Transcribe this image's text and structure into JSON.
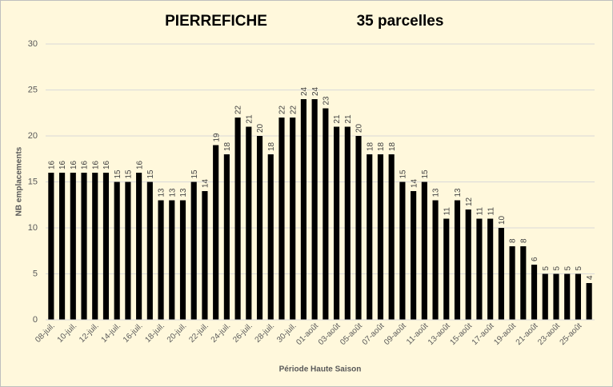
{
  "chart_data": {
    "type": "bar",
    "title": "PIERREFICHE",
    "subtitle": "35 parcelles",
    "y_label": "NB emplacements",
    "x_label": "Période Haute Saison",
    "categories": [
      "08-juil.",
      null,
      "10-juil.",
      null,
      "12-juil.",
      null,
      "14-juil.",
      null,
      "16-juil.",
      null,
      "18-juil.",
      null,
      "20-juil.",
      null,
      "22-juil.",
      null,
      "24-juil.",
      null,
      "26-juil.",
      null,
      "28-juil.",
      null,
      "30-juil.",
      null,
      "01-août",
      null,
      "03-août",
      null,
      "05-août",
      null,
      "07-août",
      null,
      "09-août",
      null,
      "11-août",
      null,
      "13-août",
      null,
      "15-août",
      null,
      "17-août",
      null,
      "19-août",
      null,
      "21-août",
      null,
      "23-août",
      null,
      "25-août",
      null
    ],
    "values": [
      16,
      16,
      16,
      16,
      16,
      16,
      15,
      15,
      16,
      15,
      13,
      13,
      13,
      15,
      14,
      19,
      18,
      22,
      21,
      20,
      18,
      22,
      22,
      24,
      24,
      23,
      21,
      21,
      20,
      18,
      18,
      18,
      15,
      14,
      15,
      13,
      11,
      13,
      12,
      11,
      11,
      10,
      8,
      8,
      6,
      5,
      5,
      5,
      5,
      4
    ],
    "color": "#000000",
    "ylim": [
      0,
      30
    ],
    "yticks": [
      0,
      5,
      10,
      15,
      20,
      25,
      30
    ],
    "grid": true
  }
}
